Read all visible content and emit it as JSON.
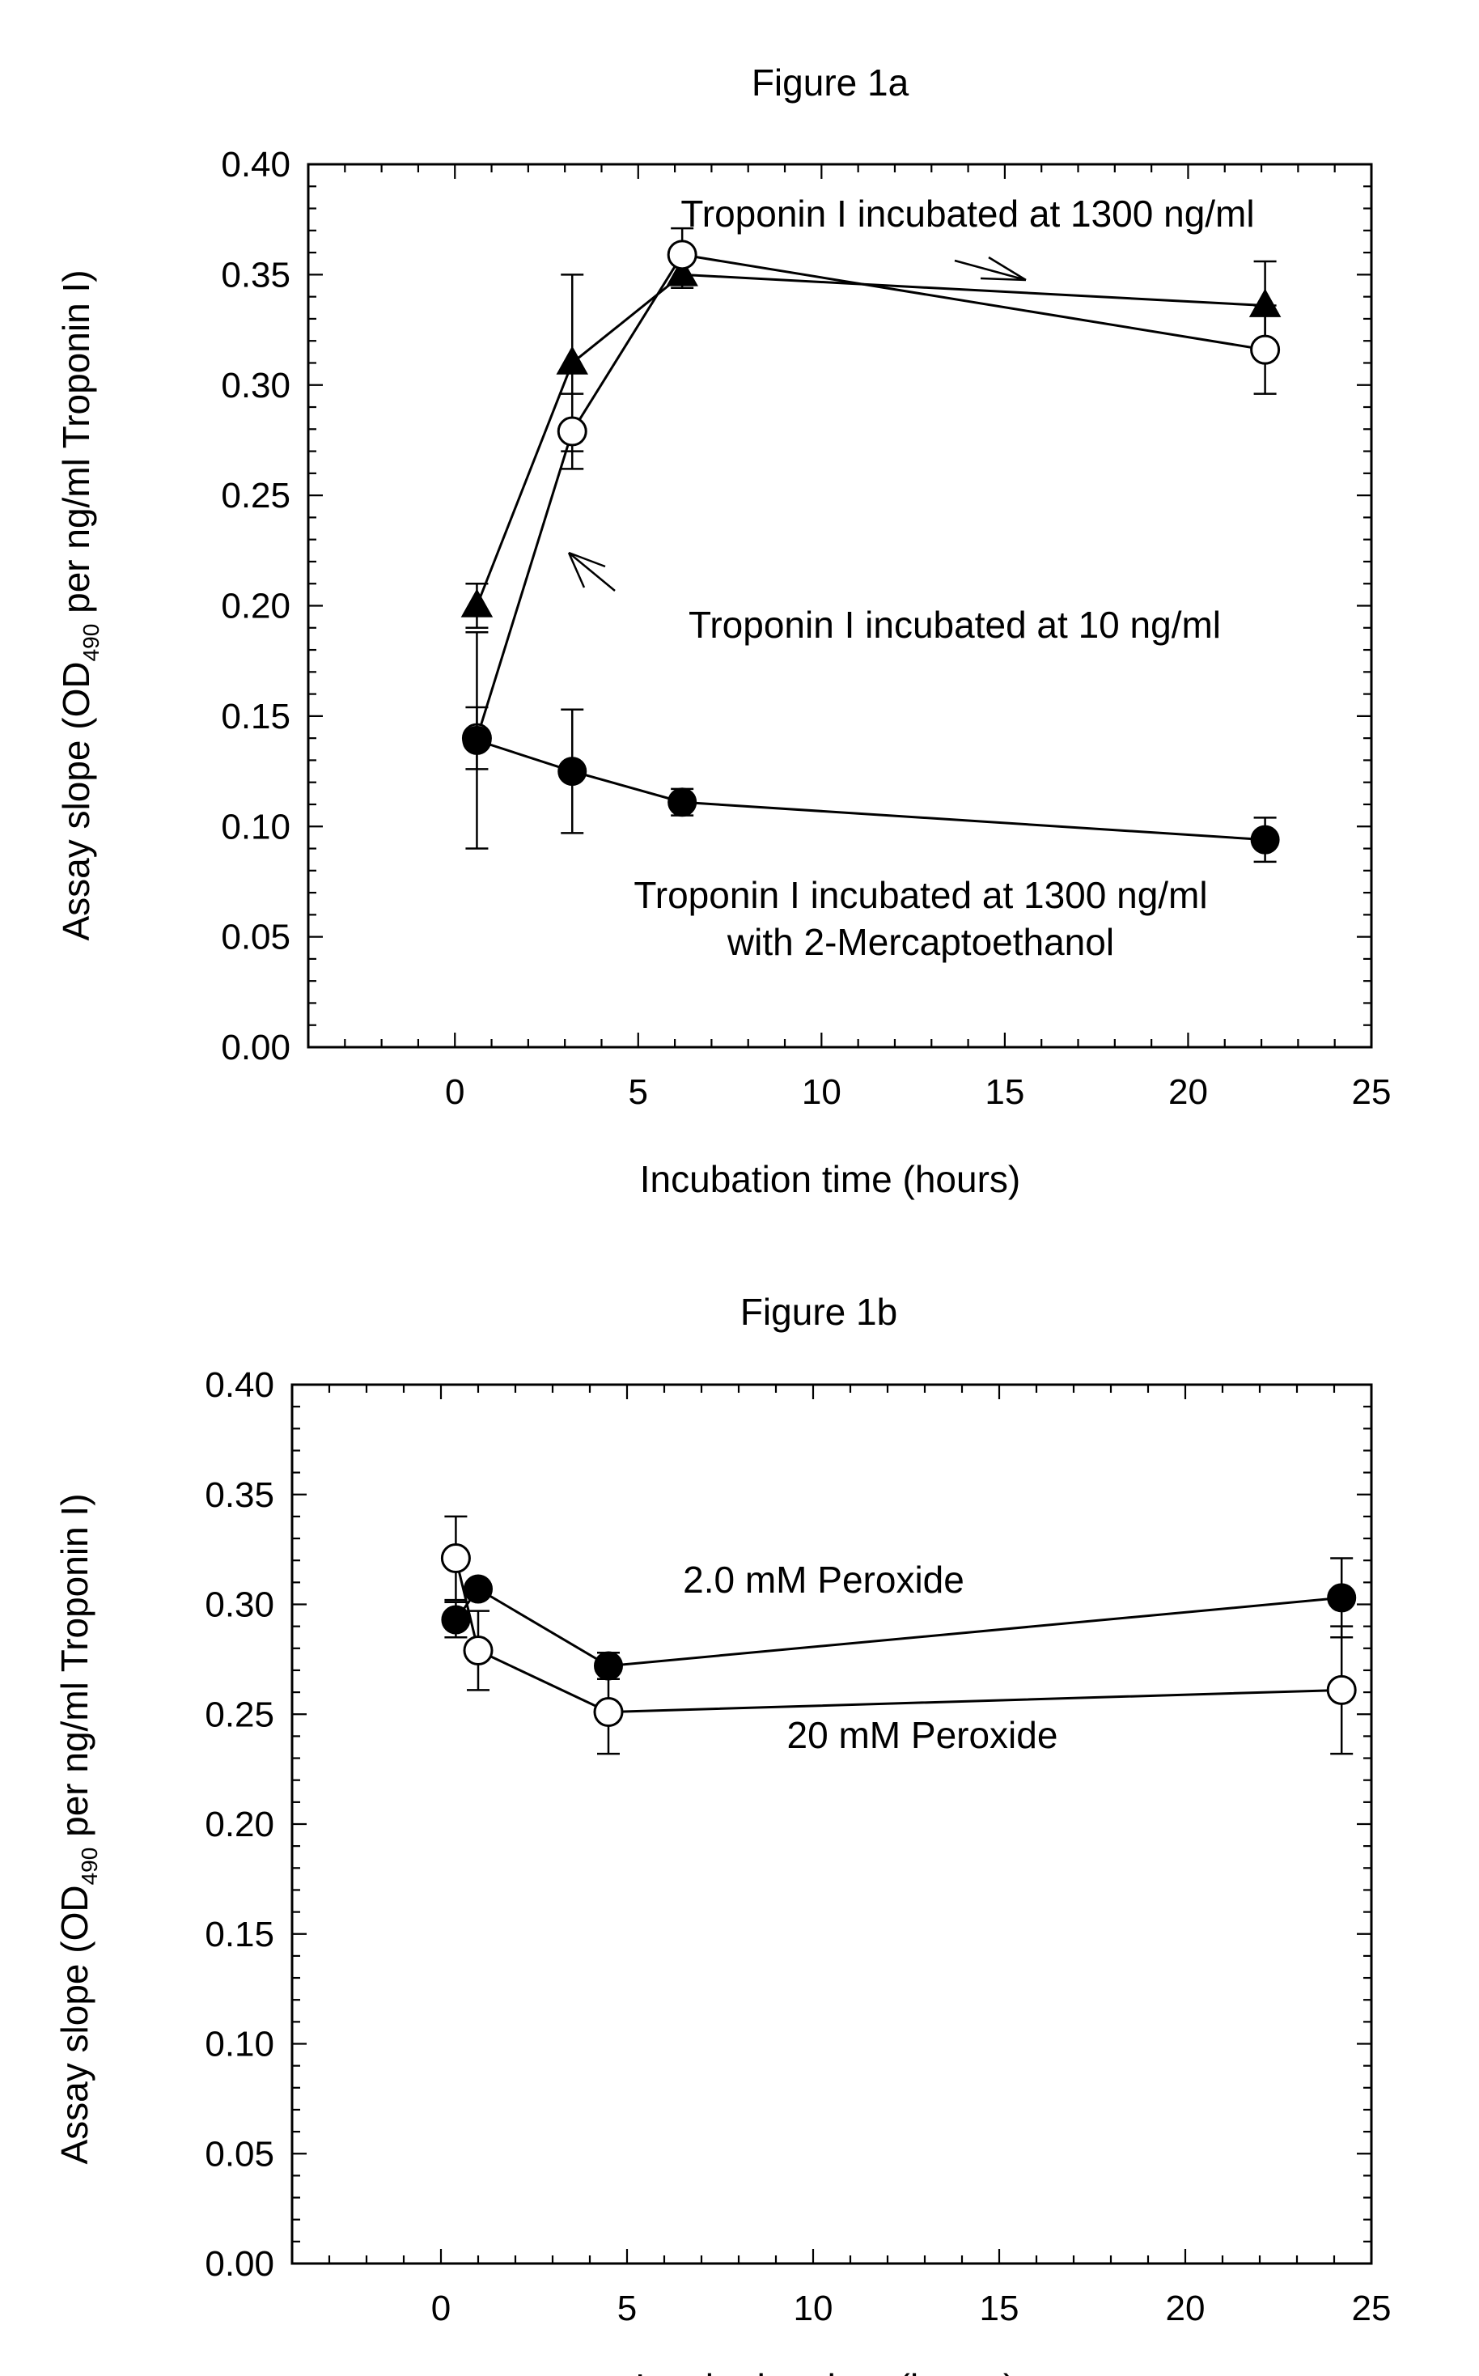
{
  "chart_data": [
    {
      "type": "line",
      "title": "Figure 1a",
      "xlabel": "Incubation time (hours)",
      "ylabel_prefix": "Assay slope (OD",
      "ylabel_sub": "490",
      "ylabel_suffix": "  per ng/ml Troponin I)",
      "xlim": [
        -4,
        25
      ],
      "ylim": [
        0,
        0.4
      ],
      "x_ticks": [
        0,
        5,
        10,
        15,
        20,
        25
      ],
      "y_ticks": [
        "0.00",
        "0.05",
        "0.10",
        "0.15",
        "0.20",
        "0.25",
        "0.30",
        "0.35",
        "0.40"
      ],
      "grid": false,
      "series": [
        {
          "marker": "triangle-filled",
          "x": [
            0.6,
            3.2,
            6.2,
            22.1
          ],
          "y": [
            0.2,
            0.31,
            0.35,
            0.336
          ],
          "err": [
            0.01,
            0.04,
            0.006,
            0.02
          ]
        },
        {
          "marker": "circle-open",
          "x": [
            0.6,
            3.2,
            6.2,
            22.1
          ],
          "y": [
            0.14,
            0.279,
            0.359,
            0.316
          ],
          "err": [
            0.014,
            0.017,
            0.012,
            0.02
          ]
        },
        {
          "marker": "circle-filled",
          "x": [
            0.6,
            3.2,
            6.2,
            22.1
          ],
          "y": [
            0.139,
            0.125,
            0.111,
            0.094
          ],
          "err": [
            0.049,
            0.028,
            0.006,
            0.01
          ]
        }
      ],
      "annotations": [
        "Troponin I incubated at 1300 ng/ml",
        "Troponin I incubated at 10 ng/ml",
        "Troponin I incubated at 1300 ng/ml",
        "with 2-Mercaptoethanol"
      ]
    },
    {
      "type": "line",
      "title": "Figure 1b",
      "xlabel": "Incubation time (hours)",
      "ylabel_prefix": "Assay slope (OD",
      "ylabel_sub": "490",
      "ylabel_suffix": " per ng/ml Troponin I)",
      "xlim": [
        -4,
        25
      ],
      "ylim": [
        0,
        0.4
      ],
      "x_ticks": [
        0,
        5,
        10,
        15,
        20,
        25
      ],
      "y_ticks": [
        "0.00",
        "0.05",
        "0.10",
        "0.15",
        "0.20",
        "0.25",
        "0.30",
        "0.35",
        "0.40"
      ],
      "grid": false,
      "series": [
        {
          "name": "2.0 mM Peroxide",
          "marker": "circle-filled",
          "x": [
            0.4,
            1.0,
            4.5,
            24.2
          ],
          "y": [
            0.293,
            0.307,
            0.272,
            0.303
          ],
          "err": [
            0.008,
            0.0,
            0.006,
            0.018
          ]
        },
        {
          "name": "20 mM Peroxide",
          "marker": "circle-open",
          "x": [
            0.4,
            1.0,
            4.5,
            24.2
          ],
          "y": [
            0.321,
            0.279,
            0.251,
            0.261
          ],
          "err": [
            0.019,
            0.018,
            0.019,
            0.029
          ]
        }
      ],
      "annotations": [
        "2.0 mM Peroxide",
        "20 mM Peroxide"
      ]
    }
  ]
}
